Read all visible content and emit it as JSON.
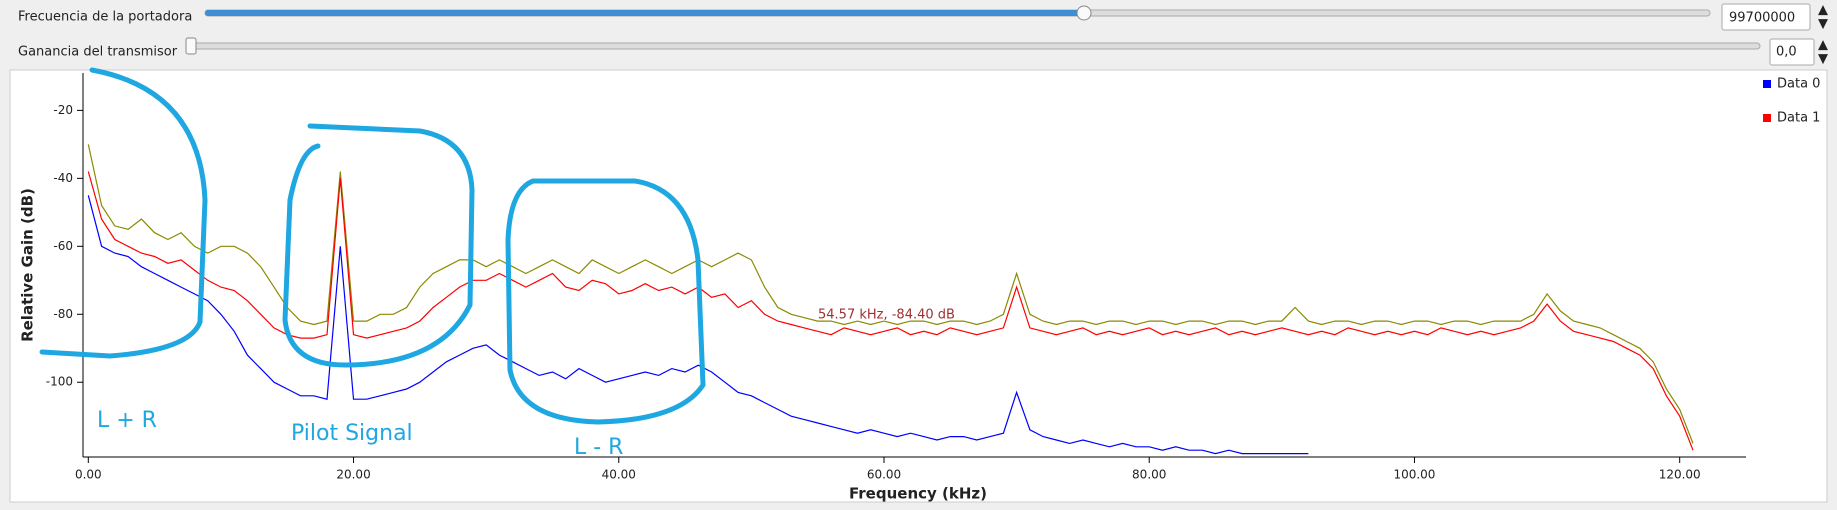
{
  "controls": [
    {
      "label": "Frecuencia de la portadora",
      "value": "99700000"
    },
    {
      "label": "Ganancia del transmisor",
      "value": "0,0"
    }
  ],
  "chart_data": {
    "type": "line",
    "xlabel": "Frequency (kHz)",
    "ylabel": "Relative Gain (dB)",
    "xlim": [
      -0.4,
      125
    ],
    "ylim": [
      -122,
      -9
    ],
    "xticks": [
      {
        "value": 0,
        "label": "0.00"
      },
      {
        "value": 20,
        "label": "20.00"
      },
      {
        "value": 40,
        "label": "40.00"
      },
      {
        "value": 60,
        "label": "60.00"
      },
      {
        "value": 80,
        "label": "80.00"
      },
      {
        "value": 100,
        "label": "100.00"
      },
      {
        "value": 120,
        "label": "120.00"
      }
    ],
    "yticks": [
      -20,
      -40,
      -60,
      -80,
      -100
    ],
    "legend": "right",
    "x": [
      0,
      1,
      2,
      3,
      4,
      5,
      6,
      7,
      8,
      9,
      10,
      11,
      12,
      13,
      14,
      15,
      16,
      17,
      18,
      19,
      20,
      21,
      22,
      23,
      24,
      25,
      26,
      27,
      28,
      29,
      30,
      31,
      32,
      33,
      34,
      35,
      36,
      37,
      38,
      39,
      40,
      41,
      42,
      43,
      44,
      45,
      46,
      47,
      48,
      49,
      50,
      51,
      52,
      53,
      54,
      55,
      56,
      57,
      58,
      59,
      60,
      61,
      62,
      63,
      64,
      65,
      66,
      67,
      68,
      69,
      70,
      71,
      72,
      73,
      74,
      75,
      76,
      77,
      78,
      79,
      80,
      81,
      82,
      83,
      84,
      85,
      86,
      87,
      88,
      89,
      90,
      91,
      92,
      93,
      94,
      95,
      96,
      97,
      98,
      99,
      100,
      101,
      102,
      103,
      104,
      105,
      106,
      107,
      108,
      109,
      110,
      111,
      112,
      113,
      114,
      115,
      116,
      117,
      118,
      119,
      120,
      121
    ],
    "series": [
      {
        "name": "Data 0",
        "color": "#0000ff",
        "values": [
          -45,
          -60,
          -62,
          -63,
          -66,
          -68,
          -70,
          -72,
          -74,
          -76,
          -80,
          -85,
          -92,
          -96,
          -100,
          -102,
          -104,
          -104,
          -105,
          -60,
          -105,
          -105,
          -104,
          -103,
          -102,
          -100,
          -97,
          -94,
          -92,
          -90,
          -89,
          -92,
          -94,
          -96,
          -98,
          -97,
          -99,
          -96,
          -98,
          -100,
          -99,
          -98,
          -97,
          -98,
          -96,
          -97,
          -95,
          -97,
          -100,
          -103,
          -104,
          -106,
          -108,
          -110,
          -111,
          -112,
          -113,
          -114,
          -115,
          -114,
          -115,
          -116,
          -115,
          -116,
          -117,
          -116,
          -116,
          -117,
          -116,
          -115,
          -103,
          -114,
          -116,
          -117,
          -118,
          -117,
          -118,
          -119,
          -118,
          -119,
          -119,
          -120,
          -119,
          -120,
          -120,
          -121,
          -120,
          -121,
          -121,
          -121,
          -121,
          -121,
          -121,
          null,
          null,
          null,
          null,
          null,
          null,
          null,
          null,
          null,
          null,
          null,
          null,
          null,
          null,
          null,
          null,
          null,
          null,
          null,
          null,
          null,
          null,
          null,
          null,
          null,
          null,
          null,
          null,
          null
        ]
      },
      {
        "name": "Data 1",
        "color": "#ff0000",
        "values": [
          -38,
          -52,
          -58,
          -60,
          -62,
          -63,
          -65,
          -64,
          -67,
          -70,
          -72,
          -73,
          -76,
          -80,
          -84,
          -86,
          -87,
          -87,
          -86,
          -40,
          -86,
          -87,
          -86,
          -85,
          -84,
          -82,
          -78,
          -75,
          -72,
          -70,
          -70,
          -68,
          -70,
          -72,
          -70,
          -68,
          -72,
          -73,
          -70,
          -71,
          -74,
          -73,
          -71,
          -73,
          -72,
          -74,
          -72,
          -75,
          -74,
          -78,
          -76,
          -80,
          -82,
          -83,
          -84,
          -85,
          -86,
          -84,
          -85,
          -86,
          -85,
          -84,
          -86,
          -85,
          -86,
          -84,
          -85,
          -86,
          -85,
          -84,
          -72,
          -84,
          -85,
          -86,
          -85,
          -84,
          -86,
          -85,
          -86,
          -85,
          -84,
          -86,
          -85,
          -86,
          -85,
          -84,
          -86,
          -85,
          -86,
          -85,
          -84,
          -85,
          -86,
          -85,
          -86,
          -84,
          -85,
          -86,
          -85,
          -86,
          -85,
          -86,
          -84,
          -85,
          -86,
          -85,
          -86,
          -85,
          -84,
          -82,
          -77,
          -82,
          -85,
          -86,
          -87,
          -88,
          -90,
          -92,
          -96,
          -104,
          -110,
          -120
        ]
      },
      {
        "color": "#8a8a00",
        "values": [
          -30,
          -48,
          -54,
          -55,
          -52,
          -56,
          -58,
          -56,
          -60,
          -62,
          -60,
          -60,
          -62,
          -66,
          -72,
          -78,
          -82,
          -83,
          -82,
          -38,
          -82,
          -82,
          -80,
          -80,
          -78,
          -72,
          -68,
          -66,
          -64,
          -64,
          -66,
          -64,
          -66,
          -68,
          -66,
          -64,
          -66,
          -68,
          -64,
          -66,
          -68,
          -66,
          -64,
          -66,
          -68,
          -66,
          -64,
          -66,
          -64,
          -62,
          -64,
          -72,
          -78,
          -80,
          -81,
          -82,
          -82,
          -83,
          -82,
          -83,
          -82,
          -83,
          -82,
          -82,
          -83,
          -82,
          -82,
          -83,
          -82,
          -80,
          -68,
          -80,
          -82,
          -83,
          -82,
          -82,
          -83,
          -82,
          -82,
          -83,
          -82,
          -82,
          -83,
          -82,
          -82,
          -83,
          -82,
          -82,
          -83,
          -82,
          -82,
          -78,
          -82,
          -83,
          -82,
          -82,
          -83,
          -82,
          -82,
          -83,
          -82,
          -82,
          -83,
          -82,
          -82,
          -83,
          -82,
          -82,
          -82,
          -80,
          -74,
          -79,
          -82,
          -83,
          -84,
          -86,
          -88,
          -90,
          -94,
          -102,
          -108,
          -118
        ]
      }
    ],
    "annotations": [
      "54.57 kHz, -84.40 dB",
      "L + R",
      "Pilot Signal",
      "L - R"
    ]
  }
}
